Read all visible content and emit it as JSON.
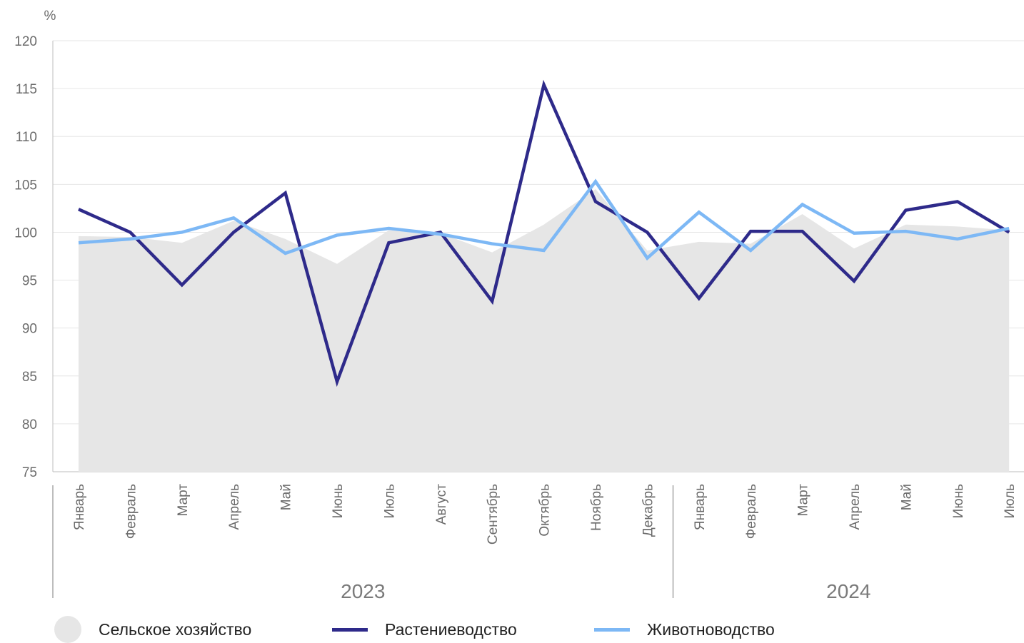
{
  "chart_data": {
    "type": "line",
    "unit_label": "%",
    "ylim": [
      75,
      120
    ],
    "yticks": [
      75,
      80,
      85,
      90,
      95,
      100,
      105,
      110,
      115,
      120
    ],
    "categories": [
      "Январь",
      "Февраль",
      "Март",
      "Апрель",
      "Май",
      "Июнь",
      "Июль",
      "Август",
      "Сентябрь",
      "Октябрь",
      "Ноябрь",
      "Декабрь",
      "Январь",
      "Февраль",
      "Март",
      "Апрель",
      "Май",
      "Июнь",
      "Июль"
    ],
    "year_groups": [
      {
        "label": "2023",
        "count": 12
      },
      {
        "label": "2024",
        "count": 7
      }
    ],
    "series": [
      {
        "name": "Сельское хозяйство",
        "kind": "area",
        "color": "#e6e6e6",
        "values": [
          99.6,
          99.5,
          98.9,
          101.2,
          99.3,
          96.7,
          100.2,
          99.9,
          97.9,
          100.8,
          104.5,
          98.1,
          99.0,
          98.8,
          101.9,
          98.3,
          100.8,
          100.6,
          100.2
        ]
      },
      {
        "name": "Растениеводство",
        "kind": "line",
        "color": "#2e2a8a",
        "values": [
          102.4,
          100.0,
          94.5,
          100.0,
          104.1,
          84.4,
          98.9,
          100.0,
          92.8,
          115.4,
          103.2,
          100.0,
          93.1,
          100.1,
          100.1,
          94.9,
          102.3,
          103.2,
          100.0
        ]
      },
      {
        "name": "Животноводство",
        "kind": "line",
        "color": "#7db8f5",
        "values": [
          98.9,
          99.3,
          100.0,
          101.5,
          97.8,
          99.7,
          100.4,
          99.8,
          98.8,
          98.1,
          105.3,
          97.3,
          102.1,
          98.1,
          102.9,
          99.9,
          100.1,
          99.3,
          100.4
        ]
      }
    ],
    "grid": true,
    "legend_position": "bottom"
  }
}
